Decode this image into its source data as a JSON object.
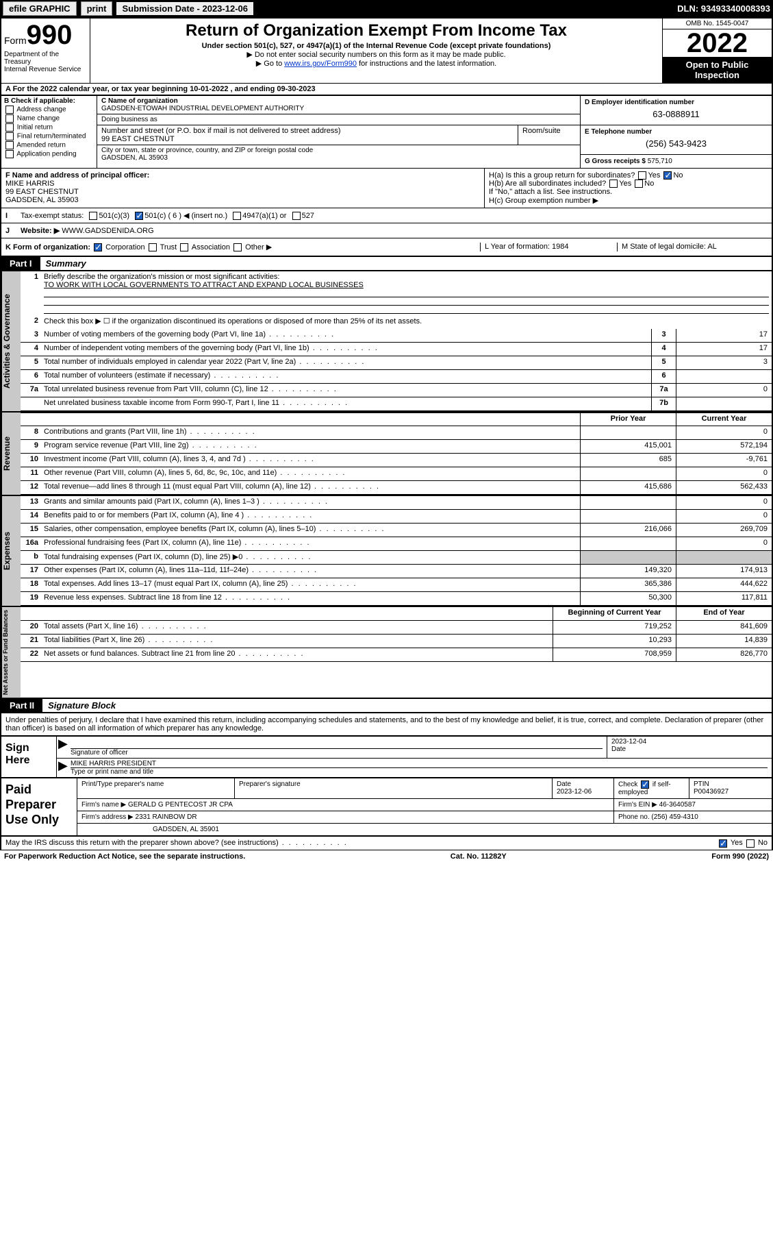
{
  "header": {
    "efile": "efile GRAPHIC",
    "print": "print",
    "sub_label": "Submission Date - 2023-12-06",
    "dln": "DLN: 93493340008393"
  },
  "top": {
    "form_prefix": "Form",
    "form_no": "990",
    "dept": "Department of the Treasury",
    "irs": "Internal Revenue Service",
    "title": "Return of Organization Exempt From Income Tax",
    "subtitle": "Under section 501(c), 527, or 4947(a)(1) of the Internal Revenue Code (except private foundations)",
    "note1": "▶ Do not enter social security numbers on this form as it may be made public.",
    "note2_pre": "▶ Go to ",
    "note2_link": "www.irs.gov/Form990",
    "note2_post": " for instructions and the latest information.",
    "omb": "OMB No. 1545-0047",
    "year": "2022",
    "open": "Open to Public Inspection"
  },
  "rowA": "A For the 2022 calendar year, or tax year beginning 10-01-2022    , and ending 09-30-2023",
  "B": {
    "label": "B Check if applicable:",
    "opts": [
      "Address change",
      "Name change",
      "Initial return",
      "Final return/terminated",
      "Amended return",
      "Application pending"
    ]
  },
  "C": {
    "name_lbl": "C Name of organization",
    "name": "GADSDEN-ETOWAH INDUSTRIAL DEVELOPMENT AUTHORITY",
    "dba_lbl": "Doing business as",
    "addr_lbl": "Number and street (or P.O. box if mail is not delivered to street address)",
    "addr": "99 EAST CHESTNUT",
    "room_lbl": "Room/suite",
    "city_lbl": "City or town, state or province, country, and ZIP or foreign postal code",
    "city": "GADSDEN, AL  35903"
  },
  "D": {
    "ein_lbl": "D Employer identification number",
    "ein": "63-0888911",
    "tel_lbl": "E Telephone number",
    "tel": "(256) 543-9423",
    "gross_lbl": "G Gross receipts $",
    "gross": "575,710"
  },
  "F": {
    "lbl": "F Name and address of principal officer:",
    "name": "MIKE HARRIS",
    "addr1": "99 EAST CHESTNUT",
    "addr2": "GADSDEN, AL  35903"
  },
  "H": {
    "a": "H(a)  Is this a group return for subordinates?",
    "a_yes": "Yes",
    "a_no": "No",
    "b": "H(b)  Are all subordinates included?",
    "b_note": "If \"No,\" attach a list. See instructions.",
    "c": "H(c)  Group exemption number ▶"
  },
  "I": {
    "lbl": "Tax-exempt status:",
    "o1": "501(c)(3)",
    "o2": "501(c) ( 6 ) ◀ (insert no.)",
    "o3": "4947(a)(1) or",
    "o4": "527"
  },
  "J": {
    "lbl": "Website: ▶",
    "val": "WWW.GADSDENIDA.ORG"
  },
  "K": {
    "lbl": "K Form of organization:",
    "o1": "Corporation",
    "o2": "Trust",
    "o3": "Association",
    "o4": "Other ▶",
    "L": "L Year of formation: 1984",
    "M": "M State of legal domicile: AL"
  },
  "part1": {
    "num": "Part I",
    "title": "Summary",
    "sections": {
      "gov": {
        "tab": "Activities & Governance",
        "l1_lbl": "Briefly describe the organization's mission or most significant activities:",
        "l1_val": "TO WORK WITH LOCAL GOVERNMENTS TO ATTRACT AND EXPAND LOCAL BUSINESSES",
        "l2": "Check this box ▶ ☐  if the organization discontinued its operations or disposed of more than 25% of its net assets.",
        "rows": [
          {
            "n": "3",
            "t": "Number of voting members of the governing body (Part VI, line 1a)",
            "b": "3",
            "v": "17"
          },
          {
            "n": "4",
            "t": "Number of independent voting members of the governing body (Part VI, line 1b)",
            "b": "4",
            "v": "17"
          },
          {
            "n": "5",
            "t": "Total number of individuals employed in calendar year 2022 (Part V, line 2a)",
            "b": "5",
            "v": "3"
          },
          {
            "n": "6",
            "t": "Total number of volunteers (estimate if necessary)",
            "b": "6",
            "v": ""
          },
          {
            "n": "7a",
            "t": "Total unrelated business revenue from Part VIII, column (C), line 12",
            "b": "7a",
            "v": "0"
          },
          {
            "n": "",
            "t": "Net unrelated business taxable income from Form 990-T, Part I, line 11",
            "b": "7b",
            "v": ""
          }
        ]
      },
      "hdr2": {
        "prior": "Prior Year",
        "current": "Current Year"
      },
      "rev": {
        "tab": "Revenue",
        "rows": [
          {
            "n": "8",
            "t": "Contributions and grants (Part VIII, line 1h)",
            "p": "",
            "c": "0"
          },
          {
            "n": "9",
            "t": "Program service revenue (Part VIII, line 2g)",
            "p": "415,001",
            "c": "572,194"
          },
          {
            "n": "10",
            "t": "Investment income (Part VIII, column (A), lines 3, 4, and 7d )",
            "p": "685",
            "c": "-9,761"
          },
          {
            "n": "11",
            "t": "Other revenue (Part VIII, column (A), lines 5, 6d, 8c, 9c, 10c, and 11e)",
            "p": "",
            "c": "0"
          },
          {
            "n": "12",
            "t": "Total revenue—add lines 8 through 11 (must equal Part VIII, column (A), line 12)",
            "p": "415,686",
            "c": "562,433"
          }
        ]
      },
      "exp": {
        "tab": "Expenses",
        "rows": [
          {
            "n": "13",
            "t": "Grants and similar amounts paid (Part IX, column (A), lines 1–3 )",
            "p": "",
            "c": "0"
          },
          {
            "n": "14",
            "t": "Benefits paid to or for members (Part IX, column (A), line 4 )",
            "p": "",
            "c": "0"
          },
          {
            "n": "15",
            "t": "Salaries, other compensation, employee benefits (Part IX, column (A), lines 5–10)",
            "p": "216,066",
            "c": "269,709"
          },
          {
            "n": "16a",
            "t": "Professional fundraising fees (Part IX, column (A), line 11e)",
            "p": "",
            "c": "0"
          },
          {
            "n": "b",
            "t": "Total fundraising expenses (Part IX, column (D), line 25) ▶0",
            "p": "",
            "c": "",
            "grey": true
          },
          {
            "n": "17",
            "t": "Other expenses (Part IX, column (A), lines 11a–11d, 11f–24e)",
            "p": "149,320",
            "c": "174,913"
          },
          {
            "n": "18",
            "t": "Total expenses. Add lines 13–17 (must equal Part IX, column (A), line 25)",
            "p": "365,386",
            "c": "444,622"
          },
          {
            "n": "19",
            "t": "Revenue less expenses. Subtract line 18 from line 12",
            "p": "50,300",
            "c": "117,811"
          }
        ]
      },
      "hdr3": {
        "prior": "Beginning of Current Year",
        "current": "End of Year"
      },
      "net": {
        "tab": "Net Assets or Fund Balances",
        "rows": [
          {
            "n": "20",
            "t": "Total assets (Part X, line 16)",
            "p": "719,252",
            "c": "841,609"
          },
          {
            "n": "21",
            "t": "Total liabilities (Part X, line 26)",
            "p": "10,293",
            "c": "14,839"
          },
          {
            "n": "22",
            "t": "Net assets or fund balances. Subtract line 21 from line 20",
            "p": "708,959",
            "c": "826,770"
          }
        ]
      }
    }
  },
  "part2": {
    "num": "Part II",
    "title": "Signature Block",
    "intro": "Under penalties of perjury, I declare that I have examined this return, including accompanying schedules and statements, and to the best of my knowledge and belief, it is true, correct, and complete. Declaration of preparer (other than officer) is based on all information of which preparer has any knowledge."
  },
  "sign": {
    "lbl": "Sign Here",
    "sig_lbl": "Signature of officer",
    "date_lbl": "Date",
    "date": "2023-12-04",
    "name": "MIKE HARRIS  PRESIDENT",
    "name_lbl": "Type or print name and title"
  },
  "prep": {
    "lbl": "Paid Preparer Use Only",
    "h1": "Print/Type preparer's name",
    "h2": "Preparer's signature",
    "h3": "Date",
    "h3v": "2023-12-06",
    "h4": "Check ☑ if self-employed",
    "h5": "PTIN",
    "h5v": "P00436927",
    "firm_lbl": "Firm's name     ▶",
    "firm": "GERALD G PENTECOST JR CPA",
    "fein_lbl": "Firm's EIN ▶",
    "fein": "46-3640587",
    "addr_lbl": "Firm's address ▶",
    "addr": "2331 RAINBOW DR",
    "addr2": "GADSDEN, AL  35901",
    "phone_lbl": "Phone no.",
    "phone": "(256) 459-4310"
  },
  "footer": {
    "may": "May the IRS discuss this return with the preparer shown above? (see instructions)",
    "yes": "Yes",
    "no": "No",
    "paperwork": "For Paperwork Reduction Act Notice, see the separate instructions.",
    "cat": "Cat. No. 11282Y",
    "form": "Form 990 (2022)"
  }
}
